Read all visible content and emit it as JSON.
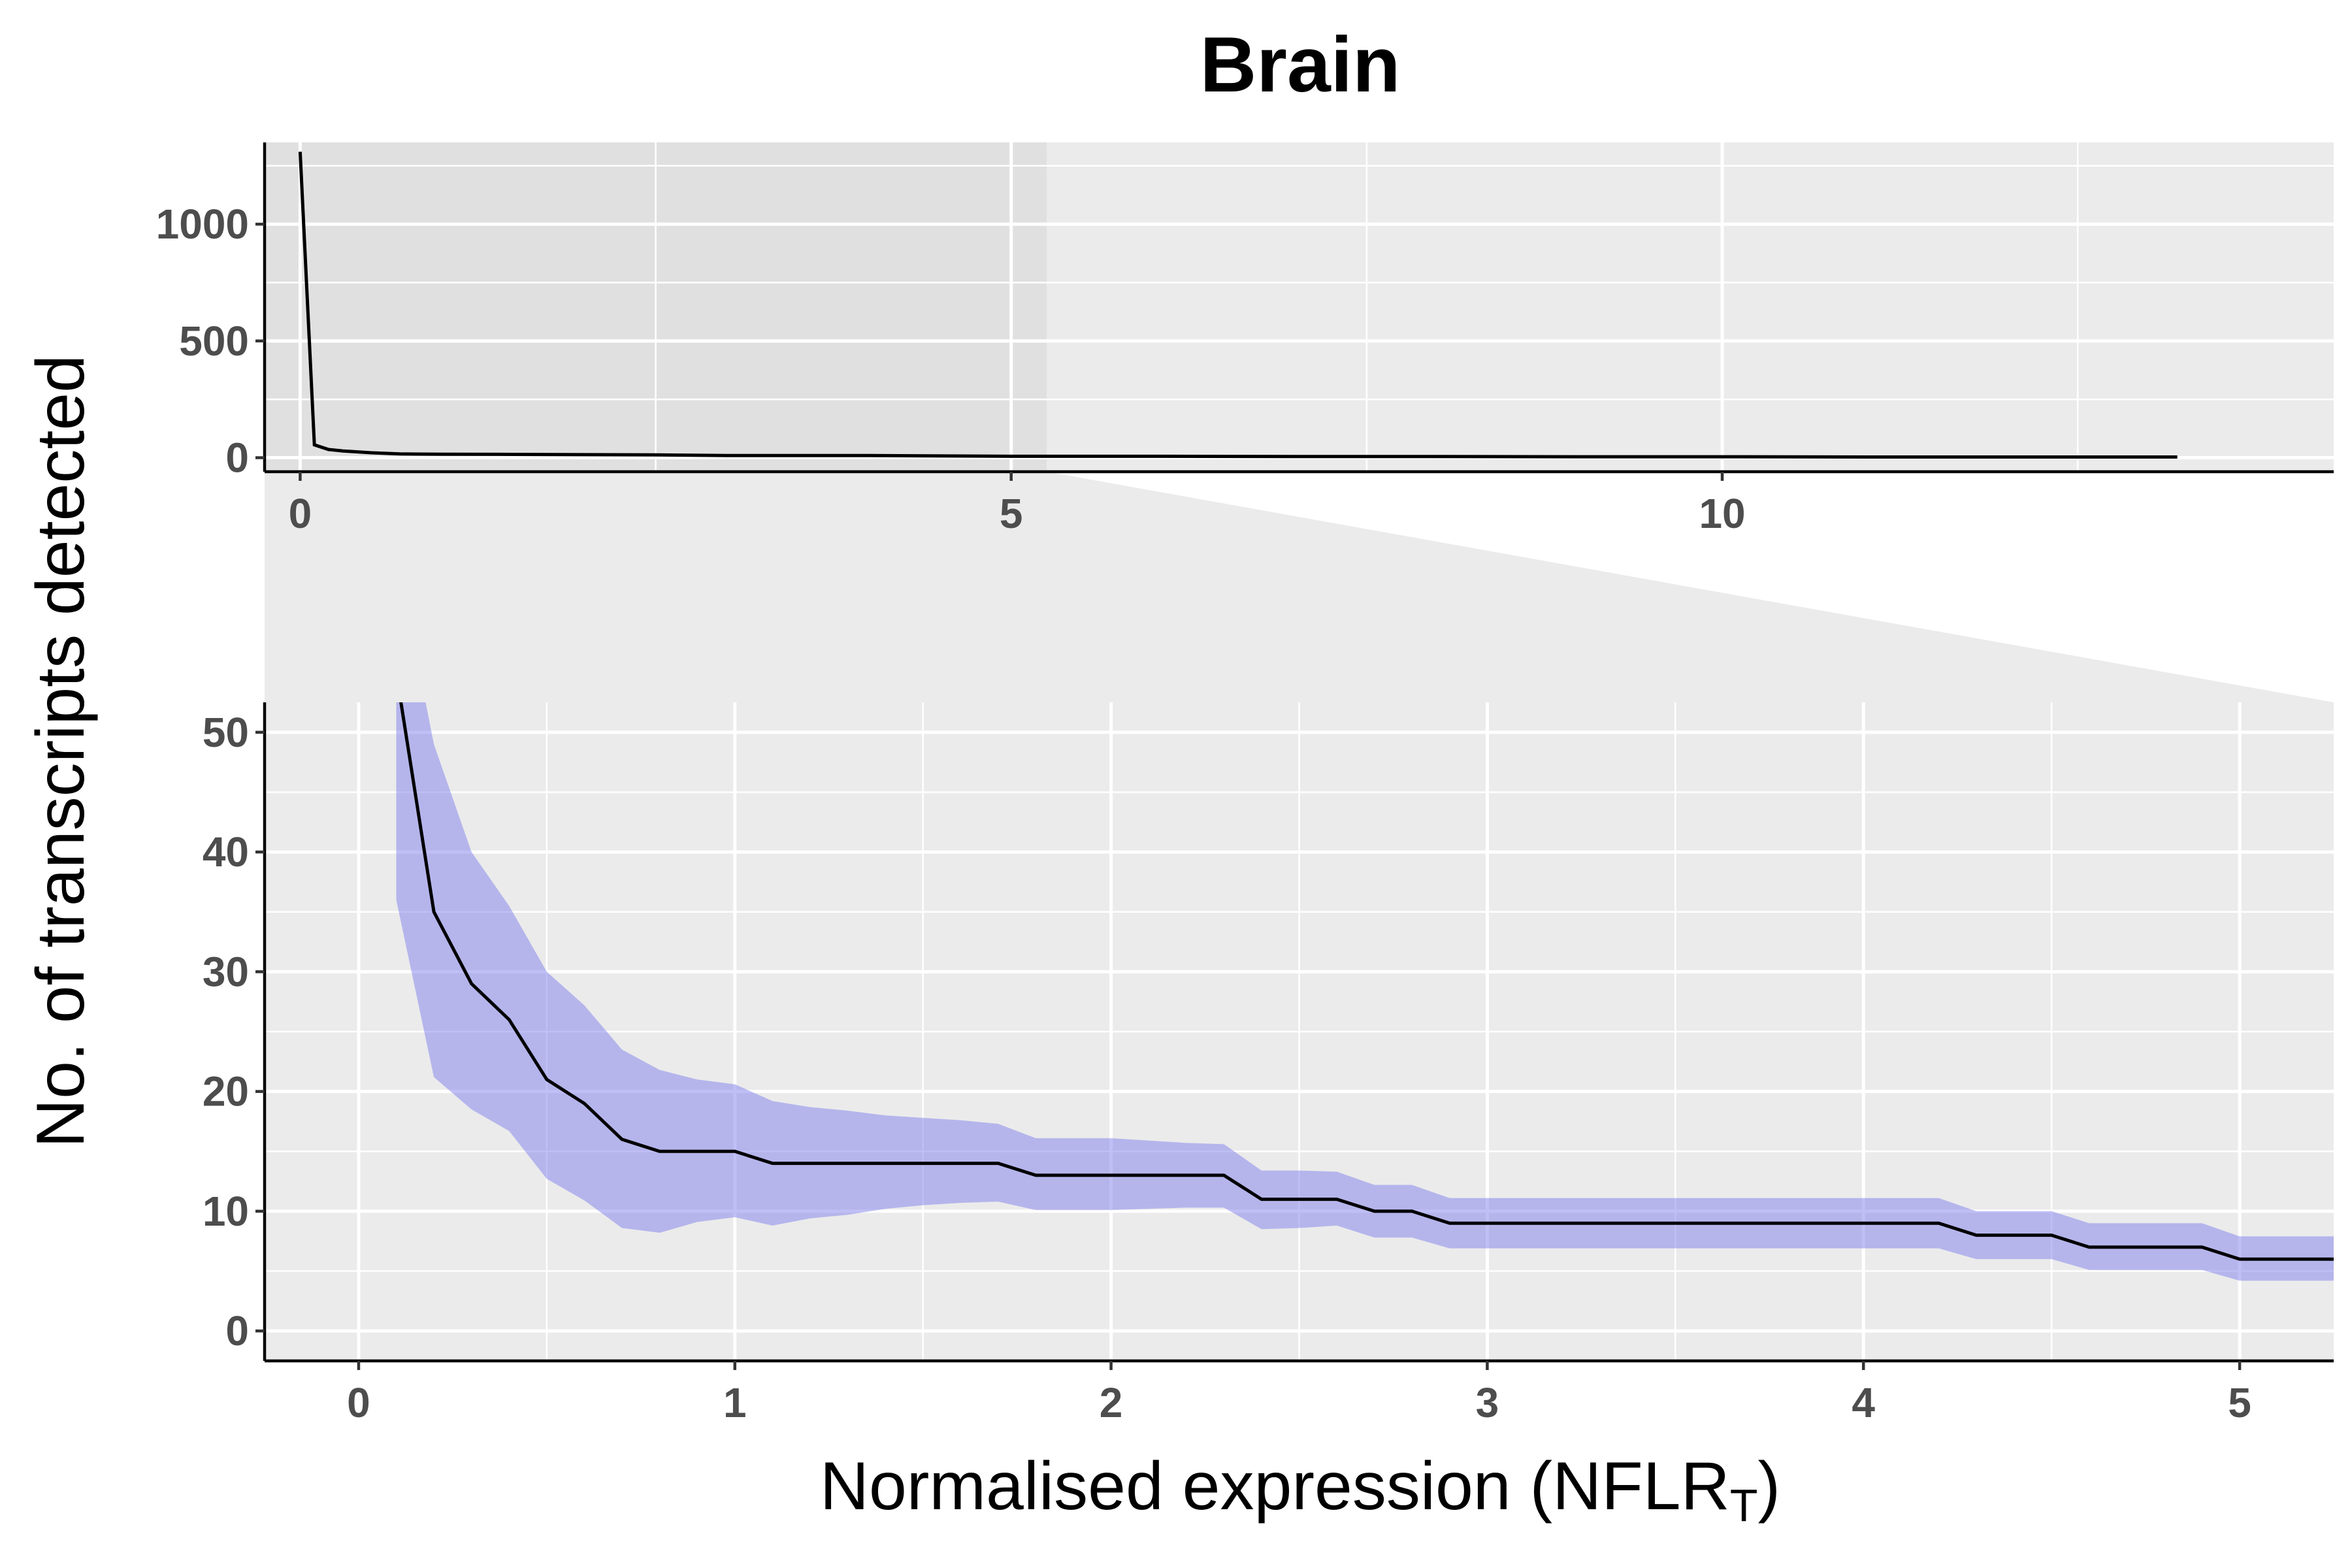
{
  "chart_data": {
    "type": "line",
    "title": "Brain",
    "ylabel": "No. of transcripts detected",
    "xlabel": "Normalised expression (NFLR",
    "xlabel_subscript": "T",
    "xlabel_close": ")",
    "colors": {
      "line": "#000000",
      "band": "#8080ee",
      "panel": "#ebebeb",
      "zoom": "#e0e0e0"
    },
    "panels": [
      {
        "name": "overview",
        "xlim": [
          -0.25,
          14.3
        ],
        "ylim": [
          -60,
          1350
        ],
        "x_ticks": [
          0,
          5,
          10
        ],
        "x_tick_labels": [
          "0",
          "5",
          "10"
        ],
        "x_minor": [
          2.5,
          7.5,
          12.5
        ],
        "y_ticks": [
          0,
          500,
          1000
        ],
        "y_tick_labels": [
          "0",
          "500",
          "1000"
        ],
        "y_minor": [
          250,
          750,
          1250
        ],
        "zoom_region": [
          -0.25,
          5.25
        ],
        "x": [
          0,
          0.1,
          0.2,
          0.3,
          0.5,
          0.7,
          1,
          1.5,
          2,
          2.5,
          3,
          4,
          5,
          6,
          7,
          8,
          9,
          10,
          11,
          12,
          13.2
        ],
        "y": [
          1310,
          55,
          35,
          29,
          21,
          16,
          15,
          14,
          13,
          12,
          9,
          9,
          6,
          6,
          5,
          5,
          4,
          4,
          3,
          3,
          3
        ]
      },
      {
        "name": "zoom",
        "xlim": [
          -0.25,
          5.25
        ],
        "ylim": [
          -2.5,
          52.5
        ],
        "x_ticks": [
          0,
          1,
          2,
          3,
          4,
          5
        ],
        "x_tick_labels": [
          "0",
          "1",
          "2",
          "3",
          "4",
          "5"
        ],
        "x_minor": [
          0.5,
          1.5,
          2.5,
          3.5,
          4.5
        ],
        "y_ticks": [
          0,
          10,
          20,
          30,
          40,
          50
        ],
        "y_tick_labels": [
          "0",
          "10",
          "20",
          "30",
          "40",
          "50"
        ],
        "y_minor": [
          5,
          15,
          25,
          35,
          45
        ],
        "x": [
          0.1,
          0.2,
          0.3,
          0.4,
          0.5,
          0.6,
          0.7,
          0.8,
          0.9,
          1.0,
          1.1,
          1.2,
          1.3,
          1.4,
          1.5,
          1.6,
          1.7,
          1.8,
          1.9,
          2.0,
          2.1,
          2.2,
          2.3,
          2.4,
          2.5,
          2.6,
          2.7,
          2.8,
          2.9,
          3.0,
          3.2,
          3.4,
          3.6,
          3.8,
          4.0,
          4.2,
          4.3,
          4.4,
          4.5,
          4.6,
          4.7,
          4.8,
          4.9,
          5.0,
          5.25
        ],
        "y": [
          55,
          35,
          29,
          26,
          21,
          19,
          16,
          15,
          15,
          15,
          14,
          14,
          14,
          14,
          14,
          14,
          14,
          13,
          13,
          13,
          13,
          13,
          13,
          11,
          11,
          11,
          10,
          10,
          9,
          9,
          9,
          9,
          9,
          9,
          9,
          9,
          8,
          8,
          8,
          7,
          7,
          7,
          7,
          6,
          6
        ],
        "lower": [
          36,
          21.2,
          18.5,
          16.7,
          12.7,
          10.9,
          8.6,
          8.2,
          9.1,
          9.5,
          8.8,
          9.4,
          9.7,
          10.2,
          10.5,
          10.7,
          10.8,
          10.1,
          10.1,
          10.1,
          10.2,
          10.3,
          10.3,
          8.5,
          8.6,
          8.8,
          7.8,
          7.8,
          6.9,
          6.9,
          6.9,
          6.9,
          6.9,
          6.9,
          6.9,
          6.9,
          6.0,
          6.0,
          6.0,
          5.1,
          5.1,
          5.1,
          5.1,
          4.2,
          4.2
        ],
        "upper": [
          65,
          49,
          40,
          35.5,
          30,
          27.2,
          23.5,
          21.8,
          21,
          20.6,
          19.2,
          18.7,
          18.4,
          18.0,
          17.8,
          17.6,
          17.3,
          16.1,
          16.1,
          16.1,
          15.9,
          15.7,
          15.6,
          13.4,
          13.4,
          13.3,
          12.2,
          12.2,
          11.1,
          11.1,
          11.1,
          11.1,
          11.1,
          11.1,
          11.1,
          11.1,
          10.0,
          10.0,
          10.0,
          9.0,
          9.0,
          9.0,
          9.0,
          7.9,
          7.9
        ]
      }
    ]
  }
}
